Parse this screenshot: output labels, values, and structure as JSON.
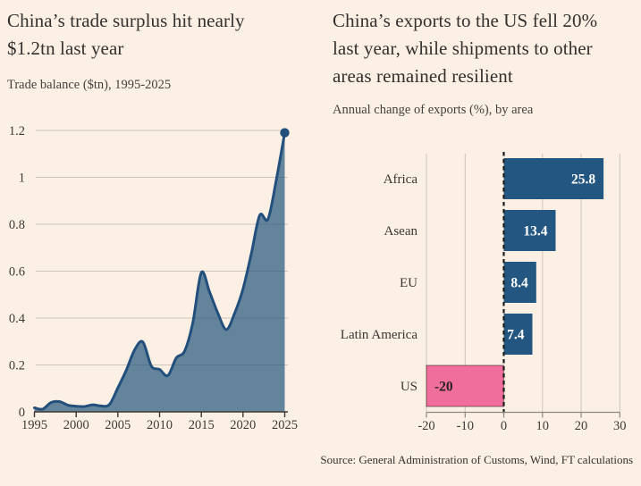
{
  "meta": {
    "source": "Source: General Administration of Customs, Wind, FT calculations",
    "background_color": "#FCF0E4"
  },
  "chart_data": [
    {
      "type": "area",
      "title": "China’s trade surplus hit nearly\n$1.2tn last year",
      "subtitle": "Trade balance ($tn), 1995-2025",
      "xlabel": "",
      "ylabel": "Trade balance ($tn)",
      "x": [
        1995,
        1996,
        1997,
        1998,
        1999,
        2000,
        2001,
        2002,
        2003,
        2004,
        2005,
        2006,
        2007,
        2008,
        2009,
        2010,
        2011,
        2012,
        2013,
        2014,
        2015,
        2016,
        2017,
        2018,
        2019,
        2020,
        2021,
        2022,
        2023,
        2024,
        2025
      ],
      "values": [
        0.017,
        0.012,
        0.04,
        0.044,
        0.029,
        0.024,
        0.023,
        0.03,
        0.025,
        0.032,
        0.102,
        0.177,
        0.264,
        0.298,
        0.196,
        0.181,
        0.155,
        0.23,
        0.259,
        0.383,
        0.594,
        0.51,
        0.42,
        0.351,
        0.421,
        0.524,
        0.676,
        0.838,
        0.822,
        0.992,
        1.19
      ],
      "ylim": [
        0,
        1.2
      ],
      "yticks": [
        0,
        0.2,
        0.4,
        0.6,
        0.8,
        1,
        1.2
      ],
      "ytick_labels": [
        "0",
        "0.2",
        "0.4",
        "0.6",
        "0.8",
        "1",
        "1.2"
      ],
      "xticks": [
        1995,
        2000,
        2005,
        2010,
        2015,
        2020,
        2025
      ],
      "grid": "horizontal",
      "end_dot": true,
      "line_color": "#224F7C",
      "fill_color": "#24567E",
      "fill_opacity": 0.7,
      "grid_color": "#CDC4B8",
      "axis_color": "#3C3833",
      "tick_label_color": "#3E3A35"
    },
    {
      "type": "bar",
      "orientation": "horizontal",
      "title": "China’s exports to the US fell 20%\nlast year, while shipments to other\nareas remained resilient",
      "subtitle": "Annual change of exports (%), by area",
      "xlabel": "Annual change of exports (%)",
      "categories": [
        "Africa",
        "Asean",
        "EU",
        "Latin America",
        "US"
      ],
      "values": [
        25.8,
        13.4,
        8.4,
        7.4,
        -20
      ],
      "labels": [
        "25.8",
        "13.4",
        "8.4",
        "7.4",
        "-20"
      ],
      "xlim": [
        -20,
        30
      ],
      "xticks": [
        -20,
        -10,
        0,
        10,
        20,
        30
      ],
      "grid": "vertical",
      "zero_line": "dashed-black",
      "positive_color": "#235681",
      "negative_color": "#F06E9C",
      "value_label_color_positive": "#FFFFFF",
      "value_label_color_negative": "#262220",
      "grid_color": "#CDC4B8",
      "axis_color": "#8F887D",
      "tick_label_color": "#3E3A35",
      "zero_line_color": "#1C1C1C"
    }
  ]
}
